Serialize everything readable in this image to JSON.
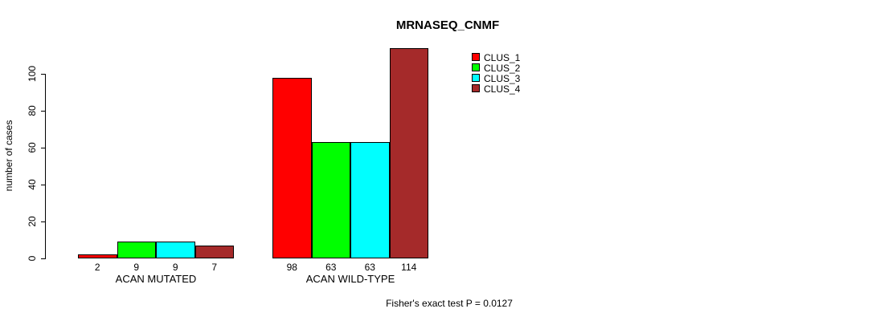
{
  "chart_data": {
    "type": "bar",
    "title": "MRNASEQ_CNMF",
    "ylabel": "number of cases",
    "xlabel": "",
    "ylim": [
      0,
      100
    ],
    "yticks": [
      0,
      20,
      40,
      60,
      80,
      100
    ],
    "categories": [
      "ACAN MUTATED",
      "ACAN WILD-TYPE"
    ],
    "series": [
      {
        "name": "CLUS_1",
        "color": "#ff0000",
        "values": [
          2,
          98
        ]
      },
      {
        "name": "CLUS_2",
        "color": "#00ff00",
        "values": [
          9,
          63
        ]
      },
      {
        "name": "CLUS_3",
        "color": "#00ffff",
        "values": [
          9,
          63
        ]
      },
      {
        "name": "CLUS_4",
        "color": "#a52a2a",
        "values": [
          7,
          114
        ]
      }
    ],
    "show_bar_values": true,
    "bar_border_color": "#000000",
    "legend_position": "top-right",
    "grid": false,
    "annotation": "Fisher's exact test P = 0.0127"
  }
}
